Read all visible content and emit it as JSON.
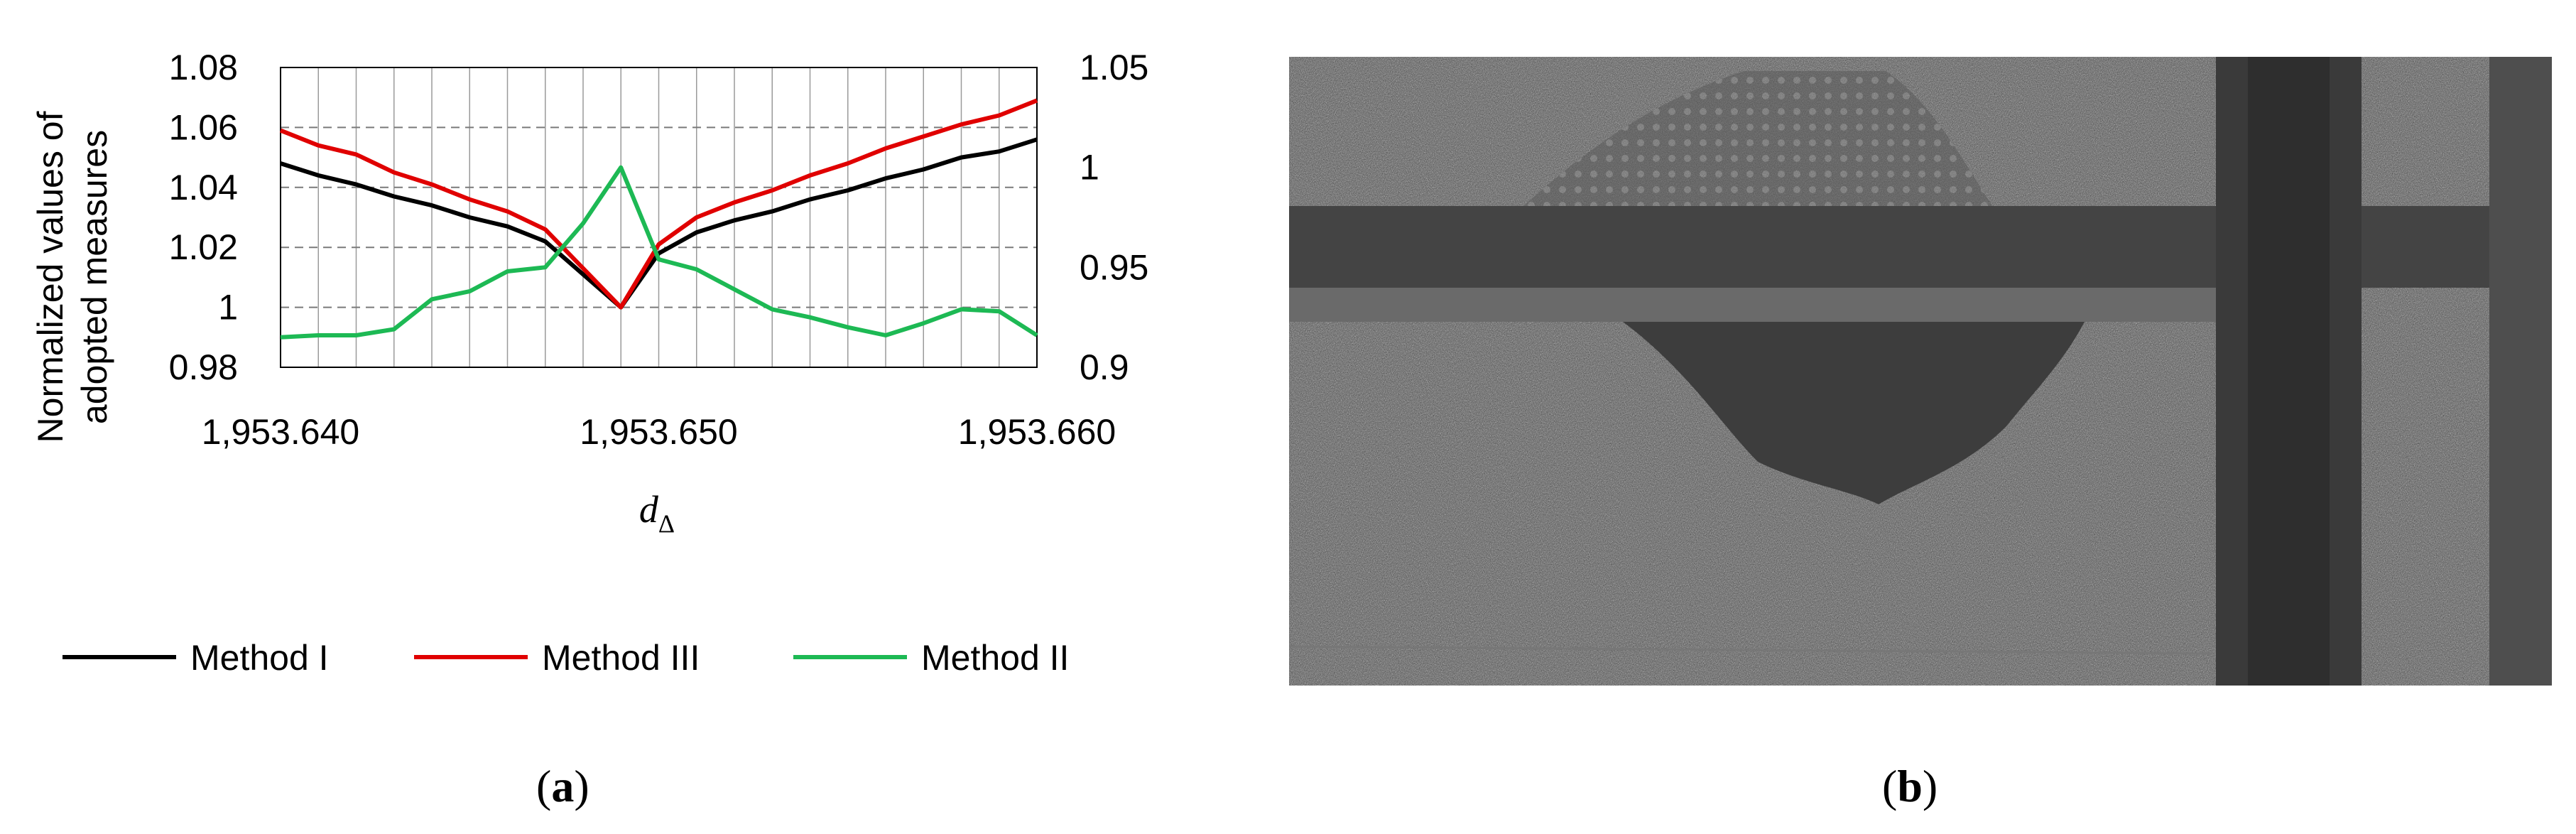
{
  "chart_data": {
    "type": "line",
    "x": [
      1953.64,
      1953.641,
      1953.642,
      1953.643,
      1953.644,
      1953.645,
      1953.646,
      1953.647,
      1953.648,
      1953.649,
      1953.65,
      1953.651,
      1953.652,
      1953.653,
      1953.654,
      1953.655,
      1953.656,
      1953.657,
      1953.658,
      1953.659,
      1953.66
    ],
    "xlim": [
      1953.64,
      1953.66
    ],
    "xticks": [
      "1,953.640",
      "1,953.650",
      "1,953.660"
    ],
    "xlabel": "d",
    "xlabel_sub": "Δ",
    "ylabel_line1": "Normalized values of",
    "ylabel_line2": "adopted measures",
    "ylim_left": [
      0.98,
      1.08
    ],
    "yticks_left": [
      "0.98",
      "1",
      "1.02",
      "1.04",
      "1.06",
      "1.08"
    ],
    "ylim_right": [
      0.9,
      1.05
    ],
    "yticks_right": [
      "0.9",
      "0.95",
      "1",
      "1.05"
    ],
    "grid": true,
    "legend_position": "bottom",
    "series": [
      {
        "name": "Method I",
        "axis": "left",
        "color": "#000000",
        "values": [
          1.048,
          1.044,
          1.041,
          1.037,
          1.034,
          1.03,
          1.027,
          1.022,
          1.011,
          1.0,
          1.018,
          1.025,
          1.029,
          1.032,
          1.036,
          1.039,
          1.043,
          1.046,
          1.05,
          1.052,
          1.056
        ]
      },
      {
        "name": "Method III",
        "axis": "left",
        "color": "#e00000",
        "values": [
          1.059,
          1.054,
          1.051,
          1.045,
          1.041,
          1.036,
          1.032,
          1.026,
          1.013,
          1.0,
          1.021,
          1.03,
          1.035,
          1.039,
          1.044,
          1.048,
          1.053,
          1.057,
          1.061,
          1.064,
          1.069
        ]
      },
      {
        "name": "Method II",
        "axis": "right",
        "color": "#1db954",
        "values": [
          0.915,
          0.916,
          0.916,
          0.919,
          0.934,
          0.938,
          0.948,
          0.95,
          0.972,
          1.0,
          0.954,
          0.949,
          0.939,
          0.929,
          0.925,
          0.92,
          0.916,
          0.922,
          0.929,
          0.928,
          0.916
        ]
      }
    ]
  },
  "captions": {
    "left": "a",
    "right": "b"
  },
  "photo": {
    "description_icon": "aerial-photo-icon"
  }
}
